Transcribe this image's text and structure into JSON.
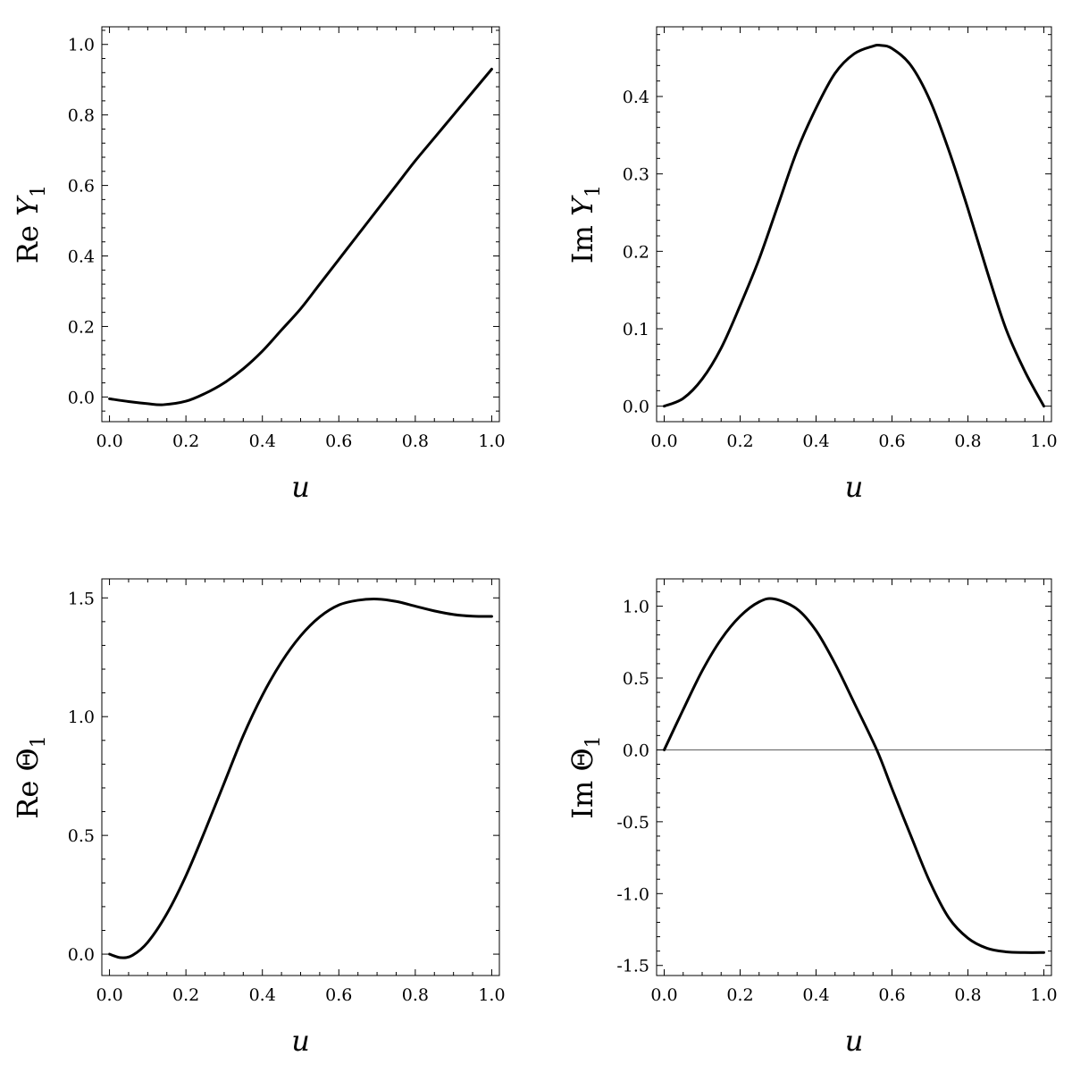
{
  "chart_data": [
    {
      "type": "line",
      "xlabel": "u",
      "ylabel": {
        "prefix": "Re",
        "symbol": "Y",
        "subscript": "1"
      },
      "xlim": [
        -0.02,
        1.02
      ],
      "ylim": [
        -0.07,
        1.05
      ],
      "xticks": [
        0.0,
        0.2,
        0.4,
        0.6,
        0.8,
        1.0
      ],
      "xtick_labels": [
        "0.0",
        "0.2",
        "0.4",
        "0.6",
        "0.8",
        "1.0"
      ],
      "yticks": [
        0.0,
        0.2,
        0.4,
        0.6,
        0.8,
        1.0
      ],
      "ytick_labels": [
        "0.0",
        "0.2",
        "0.4",
        "0.6",
        "0.8",
        "1.0"
      ],
      "zero_line": false,
      "series": [
        {
          "x": [
            0.0,
            0.05,
            0.1,
            0.14,
            0.2,
            0.25,
            0.3,
            0.35,
            0.4,
            0.45,
            0.5,
            0.55,
            0.6,
            0.65,
            0.7,
            0.75,
            0.8,
            0.85,
            0.9,
            0.95,
            1.0
          ],
          "y": [
            -0.005,
            -0.013,
            -0.019,
            -0.022,
            -0.012,
            0.01,
            0.04,
            0.08,
            0.13,
            0.19,
            0.25,
            0.32,
            0.39,
            0.46,
            0.53,
            0.6,
            0.67,
            0.735,
            0.8,
            0.865,
            0.93
          ]
        }
      ]
    },
    {
      "type": "line",
      "xlabel": "u",
      "ylabel": {
        "prefix": "Im",
        "symbol": "Y",
        "subscript": "1"
      },
      "xlim": [
        -0.02,
        1.02
      ],
      "ylim": [
        -0.02,
        0.49
      ],
      "xticks": [
        0.0,
        0.2,
        0.4,
        0.6,
        0.8,
        1.0
      ],
      "xtick_labels": [
        "0.0",
        "0.2",
        "0.4",
        "0.6",
        "0.8",
        "1.0"
      ],
      "yticks": [
        0.0,
        0.1,
        0.2,
        0.3,
        0.4
      ],
      "ytick_labels": [
        "0.0",
        "0.1",
        "0.2",
        "0.3",
        "0.4"
      ],
      "zero_line": false,
      "series": [
        {
          "x": [
            0.0,
            0.05,
            0.1,
            0.15,
            0.2,
            0.25,
            0.3,
            0.35,
            0.4,
            0.45,
            0.5,
            0.55,
            0.57,
            0.6,
            0.65,
            0.7,
            0.75,
            0.8,
            0.85,
            0.9,
            0.95,
            1.0
          ],
          "y": [
            0.0,
            0.01,
            0.035,
            0.075,
            0.13,
            0.19,
            0.26,
            0.33,
            0.385,
            0.43,
            0.455,
            0.465,
            0.466,
            0.462,
            0.44,
            0.395,
            0.33,
            0.255,
            0.175,
            0.1,
            0.045,
            0.0
          ]
        }
      ]
    },
    {
      "type": "line",
      "xlabel": "u",
      "ylabel": {
        "prefix": "Re",
        "symbol": "Θ",
        "subscript": "1"
      },
      "xlim": [
        -0.02,
        1.02
      ],
      "ylim": [
        -0.09,
        1.58
      ],
      "xticks": [
        0.0,
        0.2,
        0.4,
        0.6,
        0.8,
        1.0
      ],
      "xtick_labels": [
        "0.0",
        "0.2",
        "0.4",
        "0.6",
        "0.8",
        "1.0"
      ],
      "yticks": [
        0.0,
        0.5,
        1.0,
        1.5
      ],
      "ytick_labels": [
        "0.0",
        "0.5",
        "1.0",
        "1.5"
      ],
      "zero_line": false,
      "series": [
        {
          "x": [
            0.0,
            0.03,
            0.06,
            0.1,
            0.15,
            0.2,
            0.25,
            0.3,
            0.35,
            0.4,
            0.45,
            0.5,
            0.55,
            0.6,
            0.65,
            0.7,
            0.75,
            0.8,
            0.85,
            0.9,
            0.95,
            1.0
          ],
          "y": [
            0.0,
            -0.015,
            -0.005,
            0.05,
            0.17,
            0.33,
            0.52,
            0.72,
            0.92,
            1.09,
            1.23,
            1.34,
            1.42,
            1.47,
            1.49,
            1.495,
            1.485,
            1.465,
            1.445,
            1.43,
            1.423,
            1.422
          ]
        }
      ]
    },
    {
      "type": "line",
      "xlabel": "u",
      "ylabel": {
        "prefix": "Im",
        "symbol": "Θ",
        "subscript": "1"
      },
      "xlim": [
        -0.02,
        1.02
      ],
      "ylim": [
        -1.57,
        1.19
      ],
      "xticks": [
        0.0,
        0.2,
        0.4,
        0.6,
        0.8,
        1.0
      ],
      "xtick_labels": [
        "0.0",
        "0.2",
        "0.4",
        "0.6",
        "0.8",
        "1.0"
      ],
      "yticks": [
        -1.5,
        -1.0,
        -0.5,
        0.0,
        0.5,
        1.0
      ],
      "ytick_labels": [
        "-1.5",
        "-1.0",
        "-0.5",
        "0.0",
        "0.5",
        "1.0"
      ],
      "zero_line": true,
      "series": [
        {
          "x": [
            0.0,
            0.05,
            0.1,
            0.15,
            0.2,
            0.25,
            0.29,
            0.35,
            0.4,
            0.45,
            0.5,
            0.56,
            0.6,
            0.65,
            0.7,
            0.75,
            0.8,
            0.85,
            0.9,
            0.95,
            1.0
          ],
          "y": [
            0.0,
            0.28,
            0.55,
            0.77,
            0.93,
            1.03,
            1.05,
            0.98,
            0.83,
            0.6,
            0.33,
            0.0,
            -0.27,
            -0.6,
            -0.92,
            -1.17,
            -1.31,
            -1.38,
            -1.405,
            -1.41,
            -1.41
          ]
        }
      ]
    }
  ]
}
